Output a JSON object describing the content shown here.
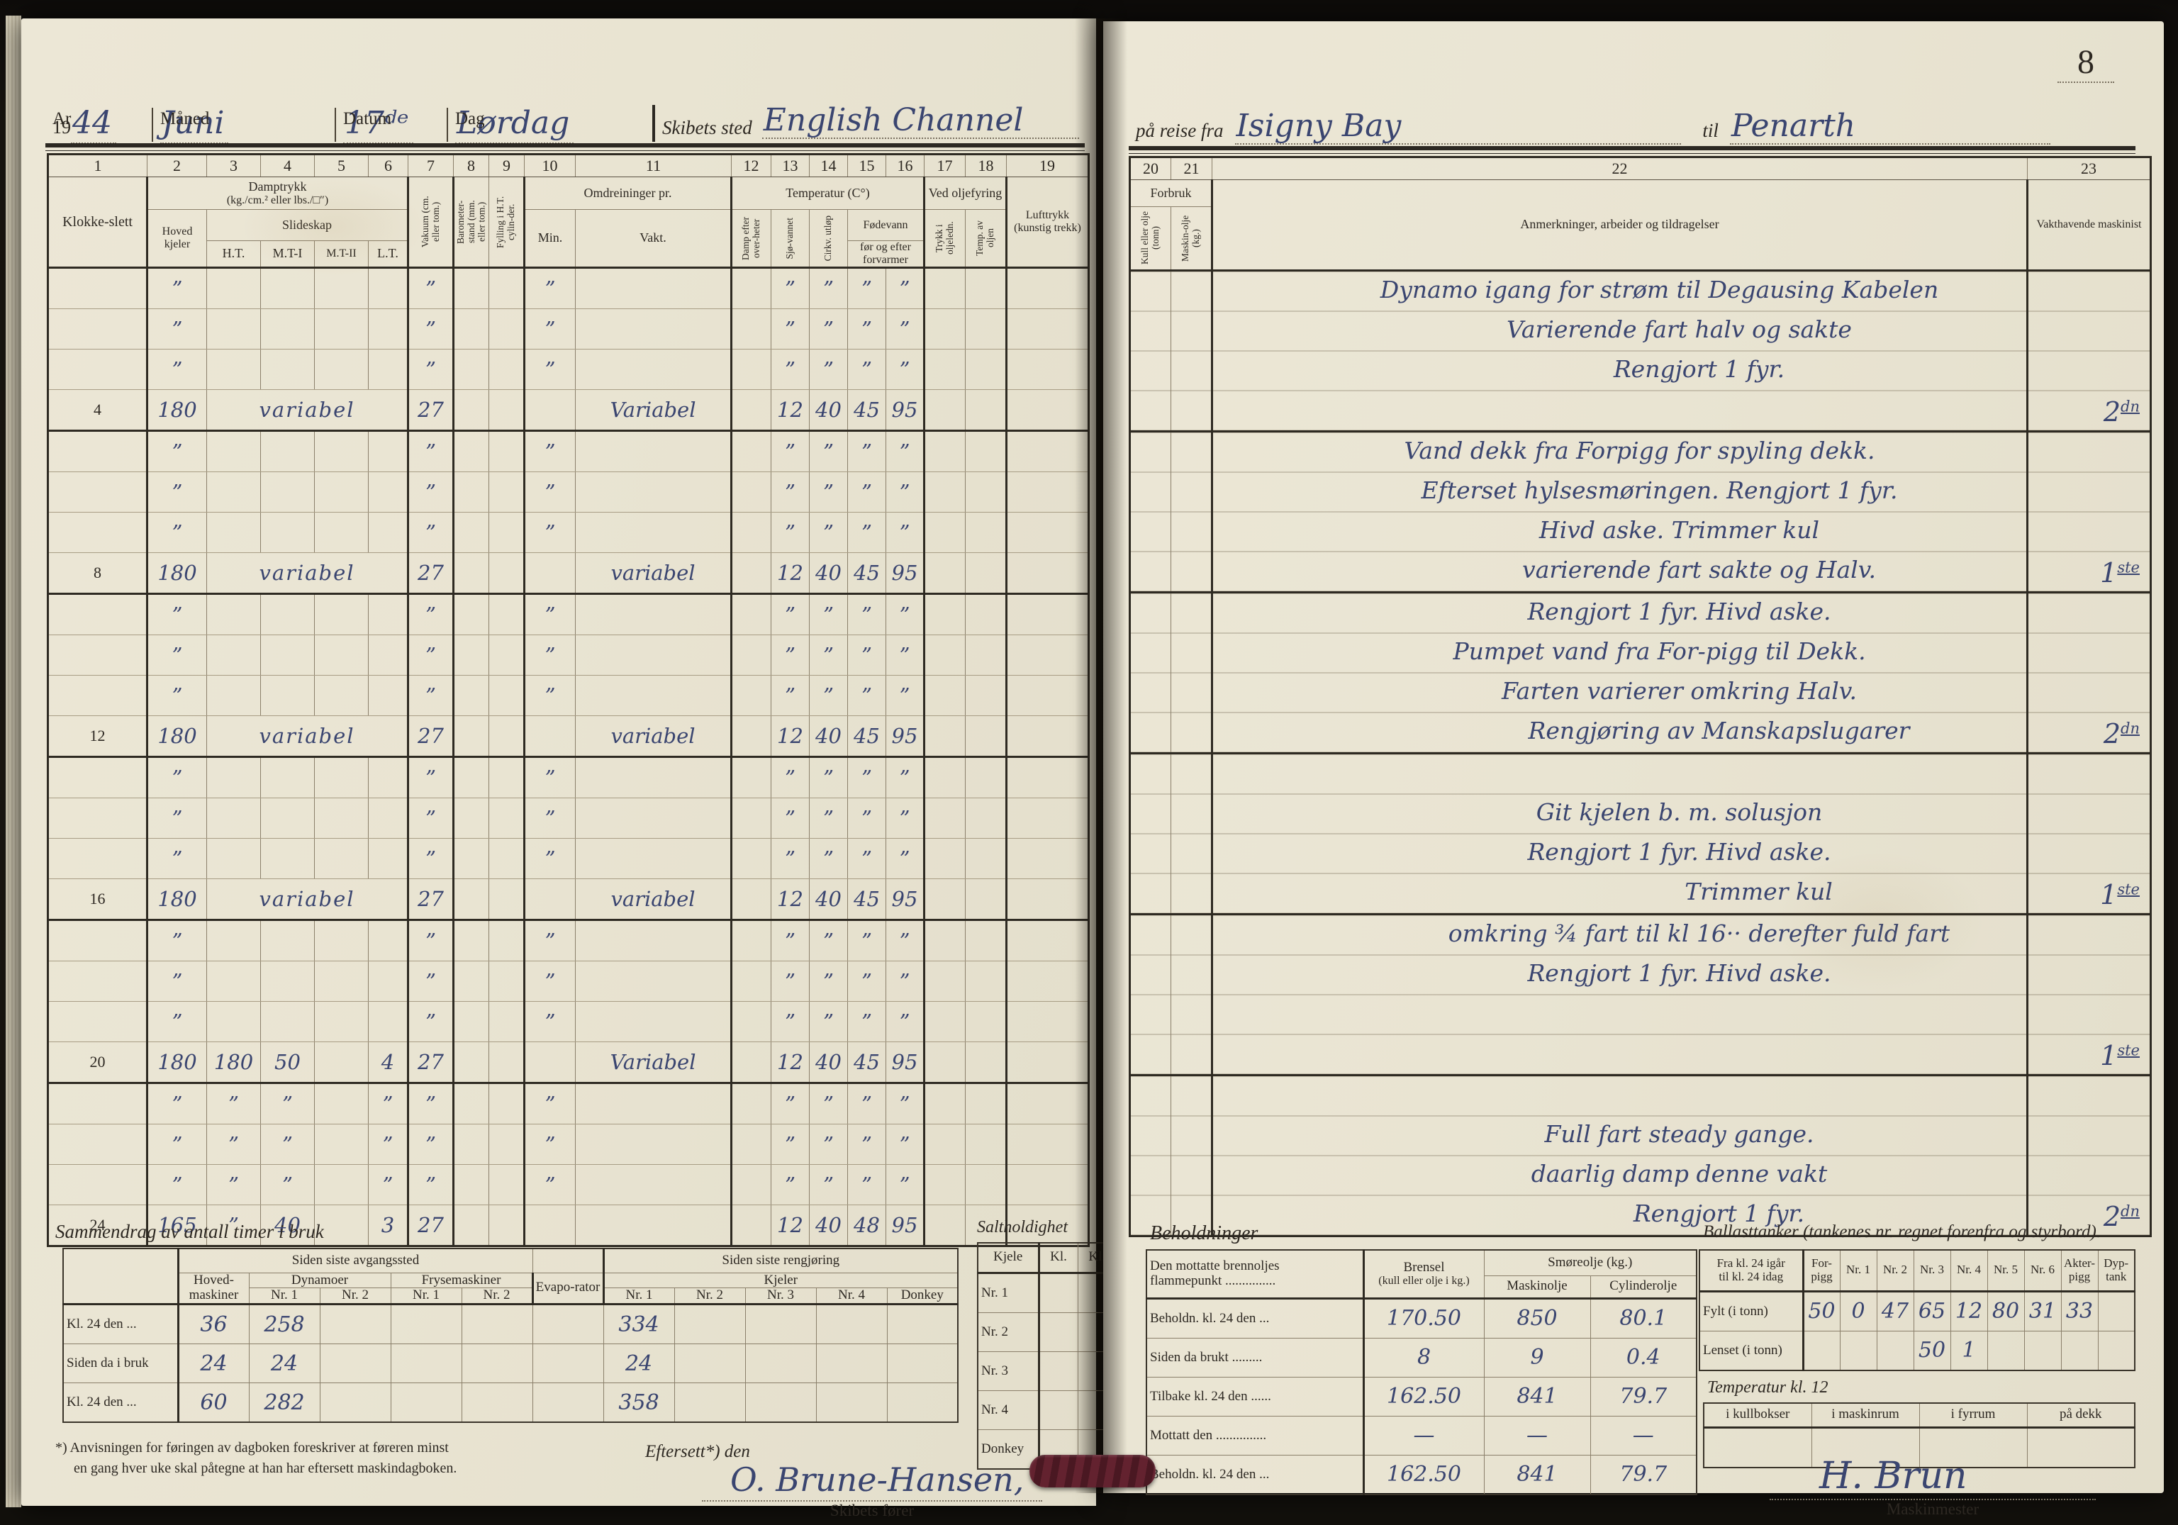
{
  "colors": {
    "ink": "#3a4570",
    "page": "#e9e4d2",
    "print": "#2d2822",
    "seal": "#5e2130"
  },
  "page_number": "8",
  "left_page": {
    "header": {
      "ar_label": "Ar",
      "ar_printed": "19",
      "ar_value": "44",
      "maned_label": "Måned",
      "maned_value": "Juni",
      "datum_label": "Datum",
      "datum_value": "17ᵈᵉ",
      "dag_label": "Dag",
      "dag_value": "Lørdag",
      "skibets_sted_label": "Skibets sted",
      "skibets_sted_value": "English Channel"
    },
    "table": {
      "col_numbers": [
        "1",
        "2",
        "3",
        "4",
        "5",
        "6",
        "7",
        "8",
        "9",
        "10",
        "11",
        "12",
        "13",
        "14",
        "15",
        "16",
        "17",
        "18",
        "19"
      ],
      "headers": {
        "klokkeslett": "Klokke-slett",
        "damptrykk": "Damptrykk",
        "damptrykk_unit": "(kg./cm.² eller lbs./□″)",
        "hoved_kjeler": "Hoved kjeler",
        "slideskap": "Slideskap",
        "ht": "H.T.",
        "mt1": "M.T-I",
        "mt2": "M.T-II",
        "lt": "L.T.",
        "vakuum": "Vakuum (cm. eller tom.)",
        "barometer": "Barometer-stand (mm. eller tom.)",
        "fylling": "Fylling i H.T. cylin-der.",
        "omdreininger": "Omdreininger pr.",
        "min": "Min.",
        "vakt": "Vakt.",
        "temperatur": "Temperatur (C°)",
        "damp_overheter": "Damp efter over-heter",
        "sjovannet": "Sjø-vannet",
        "cirkv": "Cirkv. utløp",
        "fodevann": "Fødevann",
        "for_og_efter": "før og efter forvarmer",
        "ved_oljefyring": "Ved oljefyring",
        "trykk_olje": "Trykk i oljeledn.",
        "temp_olje": "Temp. av oljen",
        "lufttrykk": "Lufttrykk (kunstig trekk)"
      },
      "rows": [
        [
          "",
          "”",
          "",
          "",
          "",
          "",
          "”",
          "",
          "",
          "”",
          "",
          "",
          "”",
          "”",
          "”",
          "”",
          "",
          "",
          ""
        ],
        [
          "",
          "”",
          "",
          "",
          "",
          "",
          "”",
          "",
          "",
          "”",
          "",
          "",
          "”",
          "”",
          "”",
          "”",
          "",
          "",
          ""
        ],
        [
          "",
          "”",
          "",
          "",
          "",
          "",
          "”",
          "",
          "",
          "”",
          "",
          "",
          "”",
          "”",
          "”",
          "”",
          "",
          "",
          ""
        ],
        [
          "4",
          "180",
          {
            "t": "variabel",
            "s": 4
          },
          "27",
          "",
          "",
          "",
          "Variabel",
          "",
          "12",
          "40",
          "45",
          "95",
          "",
          "",
          ""
        ],
        [
          "",
          "”",
          "",
          "",
          "",
          "",
          "”",
          "",
          "",
          "”",
          "",
          "",
          "”",
          "”",
          "”",
          "”",
          "",
          "",
          ""
        ],
        [
          "",
          "”",
          "",
          "",
          "",
          "",
          "”",
          "",
          "",
          "”",
          "",
          "",
          "”",
          "”",
          "”",
          "”",
          "",
          "",
          ""
        ],
        [
          "",
          "”",
          "",
          "",
          "",
          "",
          "”",
          "",
          "",
          "”",
          "",
          "",
          "”",
          "”",
          "”",
          "”",
          "",
          "",
          ""
        ],
        [
          "8",
          "180",
          {
            "t": "variabel",
            "s": 4
          },
          "27",
          "",
          "",
          "",
          "variabel",
          "",
          "12",
          "40",
          "45",
          "95",
          "",
          "",
          ""
        ],
        [
          "",
          "”",
          "",
          "",
          "",
          "",
          "”",
          "",
          "",
          "”",
          "",
          "",
          "”",
          "”",
          "”",
          "”",
          "",
          "",
          ""
        ],
        [
          "",
          "”",
          "",
          "",
          "",
          "",
          "”",
          "",
          "",
          "”",
          "",
          "",
          "”",
          "”",
          "”",
          "”",
          "",
          "",
          ""
        ],
        [
          "",
          "”",
          "",
          "",
          "",
          "",
          "”",
          "",
          "",
          "”",
          "",
          "",
          "”",
          "”",
          "”",
          "”",
          "",
          "",
          ""
        ],
        [
          "12",
          "180",
          {
            "t": "variabel",
            "s": 4
          },
          "27",
          "",
          "",
          "",
          "variabel",
          "",
          "12",
          "40",
          "45",
          "95",
          "",
          "",
          ""
        ],
        [
          "",
          "”",
          "",
          "",
          "",
          "",
          "”",
          "",
          "",
          "”",
          "",
          "",
          "”",
          "”",
          "”",
          "”",
          "",
          "",
          ""
        ],
        [
          "",
          "”",
          "",
          "",
          "",
          "",
          "”",
          "",
          "",
          "”",
          "",
          "",
          "”",
          "”",
          "”",
          "”",
          "",
          "",
          ""
        ],
        [
          "",
          "”",
          "",
          "",
          "",
          "",
          "”",
          "",
          "",
          "”",
          "",
          "",
          "”",
          "”",
          "”",
          "”",
          "",
          "",
          ""
        ],
        [
          "16",
          "180",
          {
            "t": "variabel",
            "s": 4
          },
          "27",
          "",
          "",
          "",
          "variabel",
          "",
          "12",
          "40",
          "45",
          "95",
          "",
          "",
          ""
        ],
        [
          "",
          "”",
          "",
          "",
          "",
          "",
          "”",
          "",
          "",
          "”",
          "",
          "",
          "”",
          "”",
          "”",
          "”",
          "",
          "",
          ""
        ],
        [
          "",
          "”",
          "",
          "",
          "",
          "",
          "”",
          "",
          "",
          "”",
          "",
          "",
          "”",
          "”",
          "”",
          "”",
          "",
          "",
          ""
        ],
        [
          "",
          "”",
          "",
          "",
          "",
          "",
          "”",
          "",
          "",
          "”",
          "",
          "",
          "”",
          "”",
          "”",
          "”",
          "",
          "",
          ""
        ],
        [
          "20",
          "180",
          "180",
          "50",
          "",
          "4",
          "27",
          "",
          "",
          "",
          "Variabel",
          "",
          "12",
          "40",
          "45",
          "95",
          "",
          "",
          ""
        ],
        [
          "",
          "”",
          "”",
          "”",
          "",
          "”",
          "”",
          "",
          "",
          "”",
          "",
          "",
          "”",
          "”",
          "”",
          "”",
          "",
          "",
          ""
        ],
        [
          "",
          "”",
          "”",
          "”",
          "",
          "”",
          "”",
          "",
          "",
          "”",
          "",
          "",
          "”",
          "”",
          "”",
          "”",
          "",
          "",
          ""
        ],
        [
          "",
          "”",
          "”",
          "”",
          "",
          "”",
          "”",
          "",
          "",
          "”",
          "",
          "",
          "”",
          "”",
          "”",
          "”",
          "",
          "",
          ""
        ],
        [
          "24",
          "165",
          "”",
          "40",
          "",
          "3",
          "27",
          "",
          "",
          "",
          "",
          "",
          "12",
          "40",
          "48",
          "95",
          "",
          "",
          ""
        ]
      ]
    },
    "summary": {
      "title": "Sammendrag av antall timer i bruk",
      "group1": "Siden siste avgangssted",
      "group2": "Siden siste rengjøring",
      "hovedmaskiner_label": "Hoved-maskiner",
      "dynamoer_label": "Dynamoer",
      "frysemaskiner_label": "Frysemaskiner",
      "evaporator_label": "Evapo-rator",
      "kjeler_label": "Kjeler",
      "nr1": "Nr. 1",
      "nr2": "Nr. 2",
      "nr3": "Nr. 3",
      "nr4": "Nr. 4",
      "donkey": "Donkey",
      "rows": [
        {
          "label": "Kl. 24 den ...",
          "values": [
            "36",
            "258",
            "",
            "",
            "",
            "",
            "334",
            "",
            "",
            "",
            ""
          ]
        },
        {
          "label": "Siden da i bruk",
          "values": [
            "24",
            "24",
            "",
            "",
            "",
            "",
            "24",
            "",
            "",
            "",
            ""
          ]
        },
        {
          "label": "Kl. 24 den ...",
          "values": [
            "60",
            "282",
            "",
            "",
            "",
            "",
            "358",
            "",
            "",
            "",
            ""
          ]
        }
      ]
    },
    "saltholdighet": {
      "title": "Saltholdighet",
      "kjele_label": "Kjele",
      "kl_label": "Kl.",
      "rows": [
        "Nr. 1",
        "Nr. 2",
        "Nr. 3",
        "Nr. 4",
        "Donkey"
      ]
    },
    "footnote_line1": "*) Anvisningen for føringen av dagboken foreskriver at føreren minst",
    "footnote_line2": "en gang hver uke skal påtegne at han har eftersett maskindagboken.",
    "eftersett_label": "Eftersett*)  den",
    "captain_signature": "O. Brune-Hansen,",
    "captain_title": "Skibets fører"
  },
  "right_page": {
    "header": {
      "pa_reise_fra_label": "på reise fra",
      "from_value": "Isigny Bay",
      "til_label": "til",
      "to_value": "Penarth"
    },
    "table": {
      "col_numbers": [
        "20",
        "21",
        "22",
        "23"
      ],
      "forbruk_label": "Forbruk",
      "kull_label": "Kull eller olje (tonn)",
      "maskinolje_label": "Maskin-olje (kg.)",
      "anmerkninger_label": "Anmerkninger, arbeider og tildragelser",
      "vakthavende_label": "Vakthavende maskinist"
    },
    "watch_blocks": [
      {
        "lines": [
          {
            "t": "Dynamo igang for strøm til Degausing Kabelen",
            "i": 2
          },
          {
            "t": "Varierende fart halv og sakte",
            "i": 3
          },
          {
            "t": "Rengjort 1 fyr.",
            "i": 4
          }
        ],
        "sig": "2dn"
      },
      {
        "lines": [
          {
            "t": "Vand dekk fra Forpigg for spyling dekk.",
            "i": 1
          },
          {
            "t": "Efterset hylsesmøringen.  Rengjort 1 fyr.",
            "i": 2
          },
          {
            "t": "Hivd aske.   Trimmer kul",
            "i": 3
          },
          {
            "t": "varierende fart sakte og Halv.",
            "i": 4
          }
        ],
        "sig": "1ste"
      },
      {
        "lines": [
          {
            "t": "Rengjort 1 fyr.   Hivd aske.",
            "i": 3
          },
          {
            "t": "Pumpet vand fra For-pigg til Dekk.",
            "i": 2
          },
          {
            "t": "Farten varierer omkring Halv.",
            "i": 3
          },
          {
            "t": "Rengjøring av Manskapslugarer",
            "i": 5
          }
        ],
        "sig": "2dn"
      },
      {
        "lines": [
          {
            "t": "",
            "i": 0
          },
          {
            "t": "Git kjelen b. m. solusjon",
            "i": 3
          },
          {
            "t": "Rengjort 1 fyr.   Hivd aske.",
            "i": 3
          },
          {
            "t": "Trimmer kul",
            "i": 7
          }
        ],
        "sig": "1ste"
      },
      {
        "lines": [
          {
            "t": "omkring ¾ fart til kl 16·· derefter fuld fart",
            "i": 4
          },
          {
            "t": "Rengjort 1 fyr.   Hivd aske.",
            "i": 3
          }
        ],
        "sig": "1ste"
      },
      {
        "lines": [
          {
            "t": "",
            "i": 0
          },
          {
            "t": "Full fart steady gange.",
            "i": 3
          },
          {
            "t": "daarlig damp denne vakt",
            "i": 3
          },
          {
            "t": "Rengjort 1 fyr.",
            "i": 5
          }
        ],
        "sig": "2dn"
      }
    ],
    "beholdninger": {
      "title": "Beholdninger",
      "flammepunkt_label_1": "Den mottatte brennoljes",
      "flammepunkt_label_2": "flammepunkt ...............",
      "brensel_label": "Brensel",
      "brensel_sub": "(kull eller olje i kg.)",
      "smoreolje_label": "Smøreolje  (kg.)",
      "maskinolje_label": "Maskinolje",
      "cylinderolje_label": "Cylinderolje",
      "rows": [
        {
          "label": "Beholdn. kl. 24 den ...",
          "values": [
            "170.50",
            "850",
            "80.1"
          ]
        },
        {
          "label": "Siden da brukt .........",
          "values": [
            "8",
            "9",
            "0.4"
          ]
        },
        {
          "label": "Tilbake kl. 24 den ......",
          "values": [
            "162.50",
            "841",
            "79.7"
          ]
        },
        {
          "label": "Mottatt den ...............",
          "values": [
            "—",
            "—",
            "—"
          ]
        },
        {
          "label": "Beholdn. kl. 24 den ...",
          "values": [
            "162.50",
            "841",
            "79.7"
          ]
        }
      ]
    },
    "ballasttanker": {
      "title": "Ballasttanker (tankenes nr. regnet forenfra og styrbord).",
      "period_label_1": "Fra kl. 24 igår",
      "period_label_2": "til kl. 24 idag",
      "tank_labels": [
        "For-pigg",
        "Nr. 1",
        "Nr. 2",
        "Nr. 3",
        "Nr. 4",
        "Nr. 5",
        "Nr. 6",
        "Akter-pigg",
        "Dyp-tank"
      ],
      "rows": [
        {
          "label": "Fylt (i tonn)",
          "values": [
            "50",
            "0",
            "47",
            "65",
            "12",
            "80",
            "31",
            "33",
            ""
          ]
        },
        {
          "label": "Lenset (i tonn)",
          "values": [
            "",
            "",
            "",
            "50",
            "1",
            "",
            "",
            "",
            ""
          ]
        }
      ]
    },
    "temperatur": {
      "title": "Temperatur  kl.  12",
      "cols": [
        "i kullbokser",
        "i maskinrum",
        "i fyrrum",
        "på dekk"
      ]
    },
    "engineer_signature": "H. Brun",
    "engineer_title": "Maskinmester"
  }
}
